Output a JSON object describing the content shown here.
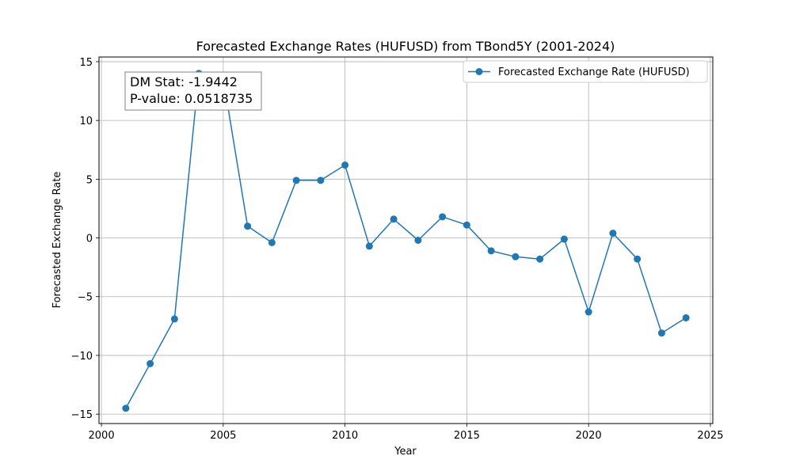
{
  "chart_data": {
    "type": "line",
    "title": "Forecasted Exchange Rates (HUFUSD) from TBond5Y (2001-2024)",
    "xlabel": "Year",
    "ylabel": "Forecasted Exchange Rate",
    "xlim": [
      1999.9,
      2025.1
    ],
    "ylim": [
      -15.8,
      15.4
    ],
    "xticks": [
      2000,
      2005,
      2010,
      2015,
      2020,
      2025
    ],
    "yticks": [
      -15,
      -10,
      -5,
      0,
      5,
      10,
      15
    ],
    "xtick_labels": [
      "2000",
      "2005",
      "2010",
      "2015",
      "2020",
      "2025"
    ],
    "ytick_labels": [
      "−15",
      "−10",
      "−5",
      "0",
      "5",
      "10",
      "15"
    ],
    "grid": true,
    "legend_position": "top-right",
    "series": [
      {
        "name": "Forecasted Exchange Rate (HUFUSD)",
        "color": "#1f77b4",
        "marker": "circle",
        "x": [
          2001,
          2002,
          2003,
          2004,
          2005,
          2006,
          2007,
          2008,
          2009,
          2010,
          2011,
          2012,
          2013,
          2014,
          2015,
          2016,
          2017,
          2018,
          2019,
          2020,
          2021,
          2022,
          2023,
          2024
        ],
        "y": [
          -14.5,
          -10.7,
          -6.9,
          14.0,
          13.6,
          1.0,
          -0.4,
          4.9,
          4.9,
          6.2,
          -0.7,
          1.6,
          -0.2,
          1.8,
          1.1,
          -1.1,
          -1.6,
          -1.8,
          -0.1,
          -6.3,
          0.4,
          -1.8,
          -8.1,
          -6.8
        ]
      }
    ],
    "annotation": {
      "lines": [
        "DM Stat: -1.9442",
        "P-value: 0.0518735"
      ],
      "position": "top-left"
    }
  }
}
